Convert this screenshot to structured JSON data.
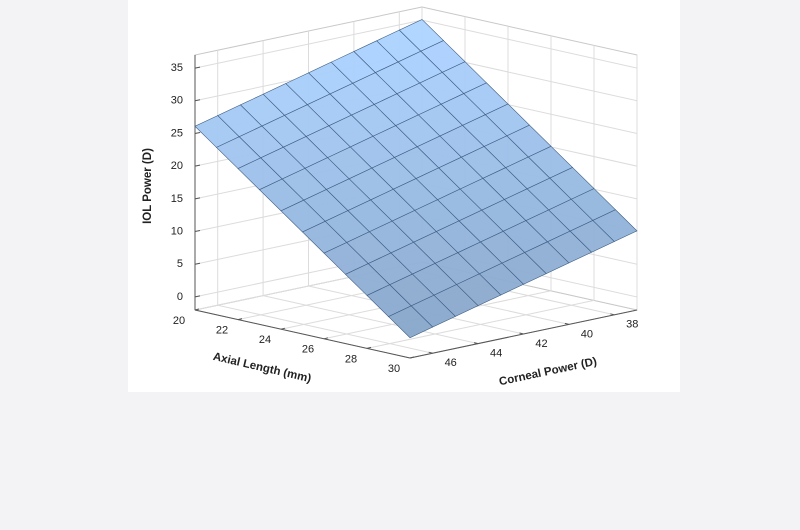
{
  "chart_data": {
    "type": "surface",
    "xlabel": "Axial Length (mm)",
    "ylabel": "Corneal Power (D)",
    "zlabel": "IOL Power (D)",
    "x": [
      20,
      21,
      22,
      23,
      24,
      25,
      26,
      27,
      28,
      29,
      30
    ],
    "y": [
      37,
      38,
      39,
      40,
      41,
      42,
      43,
      44,
      45,
      46,
      47
    ],
    "z": [
      [
        35.1,
        34.2,
        33.3,
        32.4,
        31.5,
        30.6,
        29.7,
        28.8,
        27.9,
        27.0,
        26.1
      ],
      [
        32.6,
        31.7,
        30.8,
        29.9,
        29.0,
        28.1,
        27.2,
        26.3,
        25.4,
        24.5,
        23.6
      ],
      [
        30.1,
        29.2,
        28.3,
        27.4,
        26.5,
        25.6,
        24.7,
        23.8,
        22.9,
        22.0,
        21.1
      ],
      [
        27.6,
        26.7,
        25.8,
        24.9,
        24.0,
        23.1,
        22.2,
        21.3,
        20.4,
        19.5,
        18.6
      ],
      [
        25.1,
        24.2,
        23.3,
        22.4,
        21.5,
        20.6,
        19.7,
        18.8,
        17.9,
        17.0,
        16.1
      ],
      [
        22.6,
        21.7,
        20.8,
        19.9,
        19.0,
        18.1,
        17.2,
        16.3,
        15.4,
        14.5,
        13.6
      ],
      [
        20.1,
        19.2,
        18.3,
        17.4,
        16.5,
        15.6,
        14.7,
        13.8,
        12.9,
        12.0,
        11.1
      ],
      [
        17.6,
        16.7,
        15.8,
        14.9,
        14.0,
        13.1,
        12.2,
        11.3,
        10.4,
        9.5,
        8.6
      ],
      [
        15.1,
        14.2,
        13.3,
        12.4,
        11.5,
        10.6,
        9.7,
        8.8,
        7.9,
        7.0,
        6.1
      ],
      [
        12.6,
        11.7,
        10.8,
        9.9,
        9.0,
        8.1,
        7.2,
        6.3,
        5.4,
        4.5,
        3.6
      ],
      [
        10.1,
        9.2,
        8.3,
        7.4,
        6.5,
        5.6,
        4.7,
        3.8,
        2.9,
        2.0,
        1.1
      ]
    ],
    "xlim": [
      20,
      30
    ],
    "ylim": [
      37,
      47
    ],
    "zlim": [
      -2,
      37
    ],
    "xticks": [
      20,
      22,
      24,
      26,
      28,
      30
    ],
    "yticks": [
      38,
      40,
      42,
      44,
      46
    ],
    "zticks": [
      0,
      5,
      10,
      15,
      20,
      25,
      30,
      35
    ],
    "grid": true,
    "color": "#9ec2ec"
  }
}
